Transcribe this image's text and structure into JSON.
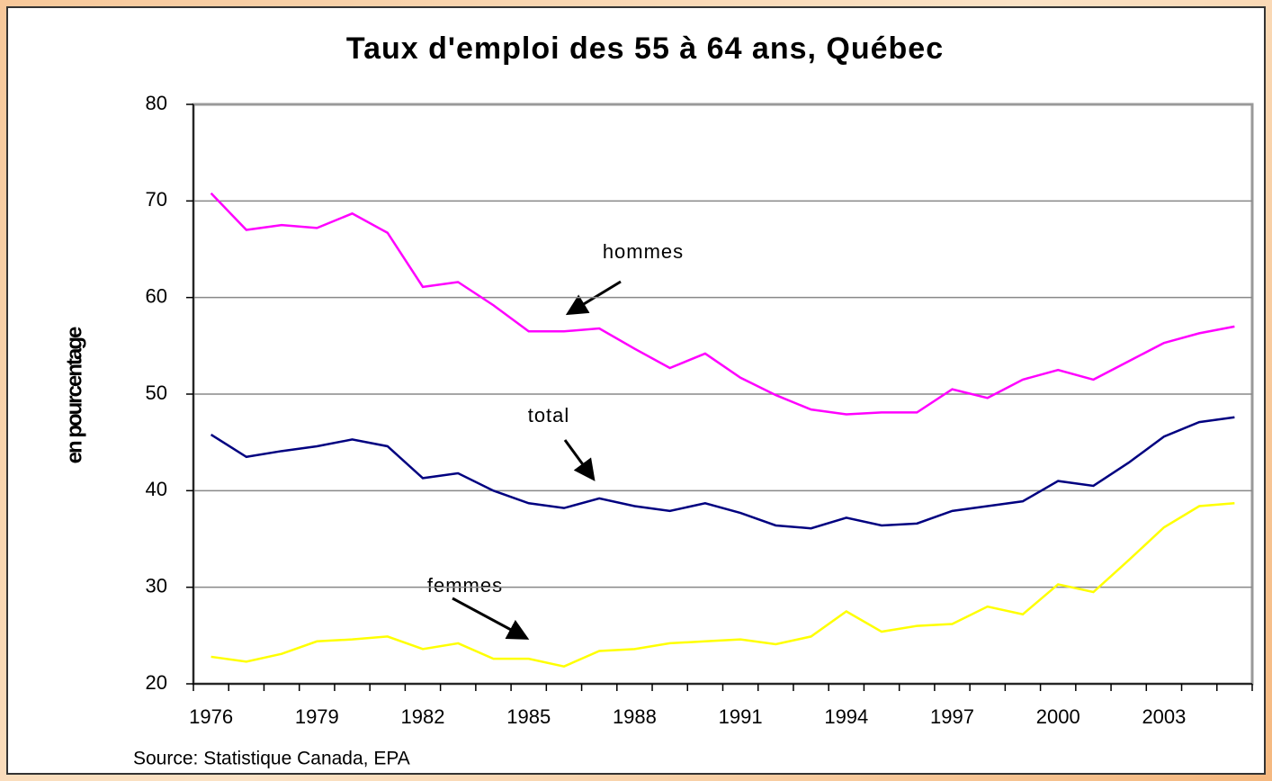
{
  "chart_data": {
    "type": "line",
    "title": "Taux d'emploi des 55 à 64 ans, Québec",
    "y_label": "en pourcentage",
    "source": "Source: Statistique Canada, EPA",
    "categories": [
      "1976",
      null,
      null,
      "1979",
      null,
      null,
      "1982",
      null,
      null,
      "1985",
      null,
      null,
      "1988",
      null,
      null,
      "1991",
      null,
      null,
      "1994",
      null,
      null,
      "1997",
      null,
      null,
      "2000",
      null,
      null,
      "2003",
      null,
      null
    ],
    "series": [
      {
        "name": "hommes",
        "color": "#ff00ff",
        "values": [
          70.8,
          67.0,
          67.5,
          67.2,
          68.7,
          66.7,
          61.1,
          61.6,
          59.2,
          56.5,
          56.5,
          56.8,
          54.7,
          52.7,
          54.2,
          51.7,
          49.9,
          48.4,
          47.9,
          48.1,
          48.1,
          50.5,
          49.6,
          51.5,
          52.5,
          51.5,
          53.4,
          55.3,
          56.3,
          57.0
        ]
      },
      {
        "name": "total",
        "color": "#000080",
        "values": [
          45.8,
          43.5,
          44.1,
          44.6,
          45.3,
          44.6,
          41.3,
          41.8,
          40.0,
          38.7,
          38.2,
          39.2,
          38.4,
          37.9,
          38.7,
          37.7,
          36.4,
          36.1,
          37.2,
          36.4,
          36.6,
          37.9,
          38.4,
          38.9,
          41.0,
          40.5,
          42.9,
          45.6,
          47.1,
          47.6
        ]
      },
      {
        "name": "femmes",
        "color": "#ffff00",
        "values": [
          22.8,
          22.3,
          23.1,
          24.4,
          24.6,
          24.9,
          23.6,
          24.2,
          22.6,
          22.6,
          21.8,
          23.4,
          23.6,
          24.2,
          24.4,
          24.6,
          24.1,
          24.9,
          27.5,
          25.4,
          26.0,
          26.2,
          28.0,
          27.2,
          30.3,
          29.5,
          32.8,
          36.2,
          38.4,
          38.7
        ]
      }
    ],
    "ylim": [
      20,
      80
    ],
    "yticks": [
      20,
      30,
      40,
      50,
      60,
      70,
      80
    ],
    "grid": true
  }
}
